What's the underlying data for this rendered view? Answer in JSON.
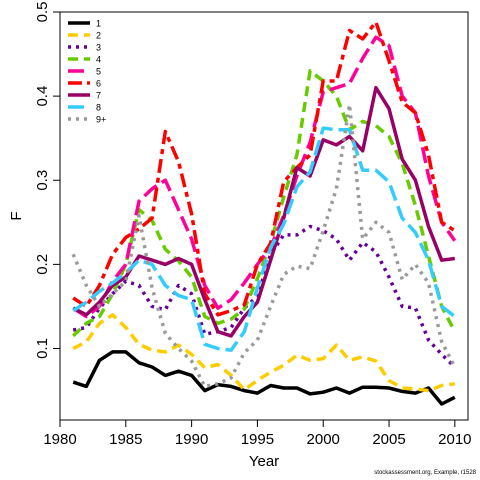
{
  "chart_data": {
    "type": "line",
    "xlabel": "Year",
    "ylabel": "F",
    "xlim": [
      1980,
      2011
    ],
    "ylim": [
      0.015,
      0.5
    ],
    "x_ticks": [
      1980,
      1985,
      1990,
      1995,
      2000,
      2005,
      2010
    ],
    "y_ticks": [
      0.1,
      0.2,
      0.3,
      0.4,
      0.5
    ],
    "legend_position": "top-left",
    "grid": false,
    "x": [
      1981,
      1982,
      1983,
      1984,
      1985,
      1986,
      1987,
      1988,
      1989,
      1990,
      1991,
      1992,
      1993,
      1994,
      1995,
      1996,
      1997,
      1998,
      1999,
      2000,
      2001,
      2002,
      2003,
      2004,
      2005,
      2006,
      2007,
      2008,
      2009,
      2010
    ],
    "series": [
      {
        "name": "1",
        "color": "#000000",
        "dash": "solid",
        "width": 3.5,
        "values": [
          0.06,
          0.055,
          0.086,
          0.096,
          0.096,
          0.083,
          0.078,
          0.068,
          0.073,
          0.068,
          0.05,
          0.057,
          0.055,
          0.05,
          0.047,
          0.056,
          0.053,
          0.053,
          0.046,
          0.048,
          0.053,
          0.047,
          0.054,
          0.054,
          0.053,
          0.049,
          0.047,
          0.053,
          0.034,
          0.042
        ]
      },
      {
        "name": "2",
        "color": "#ffcc00",
        "dash": "dashed",
        "width": 3.5,
        "values": [
          0.1,
          0.108,
          0.13,
          0.14,
          0.125,
          0.105,
          0.098,
          0.096,
          0.104,
          0.093,
          0.077,
          0.081,
          0.068,
          0.051,
          0.062,
          0.072,
          0.08,
          0.092,
          0.086,
          0.088,
          0.104,
          0.086,
          0.09,
          0.085,
          0.062,
          0.053,
          0.052,
          0.05,
          0.056,
          0.058
        ]
      },
      {
        "name": "3",
        "color": "#660099",
        "dash": "dotted",
        "width": 3.5,
        "values": [
          0.122,
          0.125,
          0.148,
          0.165,
          0.18,
          0.175,
          0.15,
          0.146,
          0.175,
          0.165,
          0.117,
          0.12,
          0.125,
          0.148,
          0.162,
          0.212,
          0.235,
          0.235,
          0.245,
          0.24,
          0.23,
          0.205,
          0.226,
          0.215,
          0.185,
          0.15,
          0.148,
          0.11,
          0.093,
          0.078
        ]
      },
      {
        "name": "4",
        "color": "#66cc00",
        "dash": "dashed",
        "width": 3.5,
        "values": [
          0.115,
          0.13,
          0.138,
          0.165,
          0.2,
          0.265,
          0.252,
          0.218,
          0.204,
          0.185,
          0.138,
          0.13,
          0.135,
          0.147,
          0.183,
          0.225,
          0.28,
          0.33,
          0.43,
          0.418,
          0.4,
          0.36,
          0.37,
          0.365,
          0.352,
          0.32,
          0.27,
          0.21,
          0.15,
          0.12
        ]
      },
      {
        "name": "5",
        "color": "#ff0099",
        "dash": "longdash",
        "width": 3.5,
        "values": [
          0.148,
          0.138,
          0.15,
          0.18,
          0.2,
          0.275,
          0.29,
          0.3,
          0.265,
          0.23,
          0.175,
          0.148,
          0.158,
          0.178,
          0.2,
          0.22,
          0.258,
          0.305,
          0.345,
          0.405,
          0.41,
          0.415,
          0.445,
          0.47,
          0.46,
          0.4,
          0.38,
          0.305,
          0.25,
          0.228
        ]
      },
      {
        "name": "6",
        "color": "#ff0000",
        "dash": "twodash",
        "width": 3.5,
        "values": [
          0.16,
          0.15,
          0.175,
          0.212,
          0.232,
          0.242,
          0.255,
          0.358,
          0.322,
          0.26,
          0.165,
          0.14,
          0.145,
          0.152,
          0.2,
          0.225,
          0.298,
          0.315,
          0.33,
          0.418,
          0.418,
          0.478,
          0.468,
          0.488,
          0.442,
          0.393,
          0.38,
          0.33,
          0.25,
          0.24
        ]
      },
      {
        "name": "7",
        "color": "#990066",
        "dash": "solid",
        "width": 3.5,
        "values": [
          0.148,
          0.14,
          0.155,
          0.175,
          0.185,
          0.21,
          0.205,
          0.2,
          0.207,
          0.2,
          0.158,
          0.12,
          0.115,
          0.138,
          0.155,
          0.205,
          0.255,
          0.315,
          0.305,
          0.348,
          0.342,
          0.352,
          0.335,
          0.41,
          0.385,
          0.325,
          0.3,
          0.245,
          0.205,
          0.207
        ]
      },
      {
        "name": "8",
        "color": "#33ccff",
        "dash": "longdash",
        "width": 3.5,
        "values": [
          0.145,
          0.155,
          0.168,
          0.178,
          0.19,
          0.205,
          0.2,
          0.175,
          0.163,
          0.158,
          0.105,
          0.1,
          0.098,
          0.12,
          0.172,
          0.22,
          0.248,
          0.292,
          0.31,
          0.362,
          0.36,
          0.36,
          0.312,
          0.312,
          0.298,
          0.255,
          0.238,
          0.205,
          0.15,
          0.138
        ]
      },
      {
        "name": "9+",
        "color": "#999999",
        "dash": "dotted",
        "width": 3.5,
        "values": [
          0.212,
          0.175,
          0.15,
          0.165,
          0.18,
          0.258,
          0.172,
          0.118,
          0.1,
          0.085,
          0.055,
          0.058,
          0.065,
          0.095,
          0.11,
          0.15,
          0.188,
          0.198,
          0.195,
          0.24,
          0.29,
          0.39,
          0.23,
          0.25,
          0.238,
          0.182,
          0.2,
          0.178,
          0.108,
          0.078
        ]
      }
    ]
  },
  "footer": "stockassessment.org, Example, r1528"
}
